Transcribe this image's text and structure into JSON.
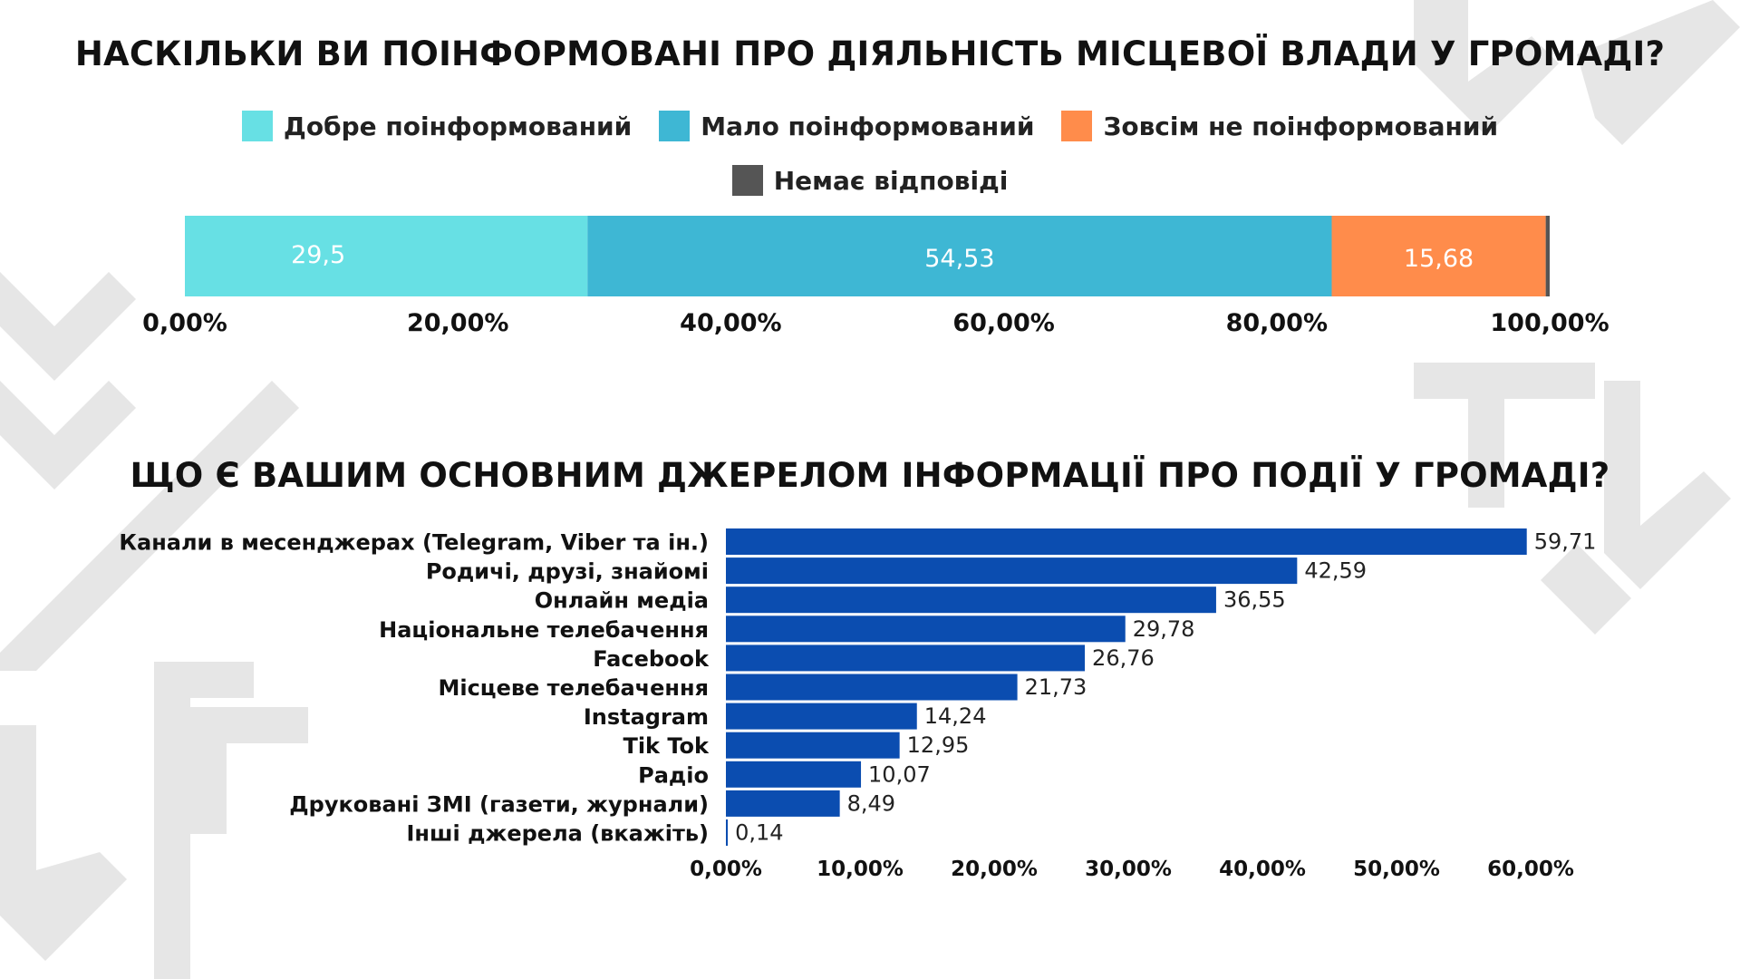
{
  "chart_data": [
    {
      "type": "bar",
      "orientation": "horizontal-stacked",
      "title": "НАСКІЛЬКИ ВИ ПОІНФОРМОВАНІ ПРО ДІЯЛЬНІСТЬ МІСЦЕВОЇ ВЛАДИ У ГРОМАДІ?",
      "legend_position": "top",
      "series": [
        {
          "name": "Добре поінформований",
          "value": 29.5,
          "label": "29,5",
          "color": "#67E0E4"
        },
        {
          "name": "Мало поінформований",
          "value": 54.53,
          "label": "54,53",
          "color": "#3EB7D4"
        },
        {
          "name": "Зовсім не поінформований",
          "value": 15.68,
          "label": "15,68",
          "color": "#FF8C4B"
        },
        {
          "name": "Немає відповіді",
          "value": 0.29,
          "label": "",
          "color": "#555555"
        }
      ],
      "xlim": [
        0,
        100
      ],
      "xticks": [
        "0,00%",
        "20,00%",
        "40,00%",
        "60,00%",
        "80,00%",
        "100,00%"
      ],
      "grid": false
    },
    {
      "type": "bar",
      "orientation": "horizontal",
      "title": "ЩО Є ВАШИМ ОСНОВНИМ ДЖЕРЕЛОМ ІНФОРМАЦІЇ ПРО ПОДІЇ У ГРОМАДІ?",
      "color": "#0B4DB0",
      "categories": [
        "Канали в месенджерах (Telegram, Viber та ін.)",
        "Родичі, друзі, знайомі",
        "Онлайн медіа",
        "Національне телебачення",
        "Facebook",
        "Місцеве телебачення",
        "Instagram",
        "Tik Tok",
        "Радіо",
        "Друковані ЗМІ (газети, журнали)",
        "Інші джерела (вкажіть)"
      ],
      "values": [
        59.71,
        42.59,
        36.55,
        29.78,
        26.76,
        21.73,
        14.24,
        12.95,
        10.07,
        8.49,
        0.14
      ],
      "labels": [
        "59,71",
        "42,59",
        "36,55",
        "29,78",
        "26,76",
        "21,73",
        "14,24",
        "12,95",
        "10,07",
        "8,49",
        "0,14"
      ],
      "xlim": [
        0,
        60
      ],
      "xticks": [
        "0,00%",
        "10,00%",
        "20,00%",
        "30,00%",
        "40,00%",
        "50,00%",
        "60,00%"
      ],
      "grid": false
    }
  ]
}
